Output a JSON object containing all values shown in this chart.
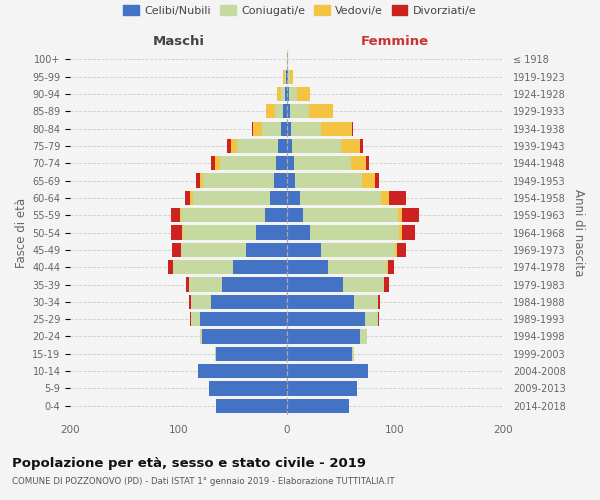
{
  "age_groups": [
    "0-4",
    "5-9",
    "10-14",
    "15-19",
    "20-24",
    "25-29",
    "30-34",
    "35-39",
    "40-44",
    "45-49",
    "50-54",
    "55-59",
    "60-64",
    "65-69",
    "70-74",
    "75-79",
    "80-84",
    "85-89",
    "90-94",
    "95-99",
    "100+"
  ],
  "birth_years": [
    "2014-2018",
    "2009-2013",
    "2004-2008",
    "1999-2003",
    "1994-1998",
    "1989-1993",
    "1984-1988",
    "1979-1983",
    "1974-1978",
    "1969-1973",
    "1964-1968",
    "1959-1963",
    "1954-1958",
    "1949-1953",
    "1944-1948",
    "1939-1943",
    "1934-1938",
    "1929-1933",
    "1924-1928",
    "1919-1923",
    "≤ 1918"
  ],
  "colors": {
    "celibi": "#4472c4",
    "coniugati": "#c5d9a0",
    "vedovi": "#f5c342",
    "divorziati": "#cc2222"
  },
  "maschi": {
    "celibi": [
      65,
      72,
      82,
      65,
      78,
      80,
      70,
      60,
      50,
      38,
      28,
      20,
      15,
      12,
      10,
      8,
      5,
      3,
      2,
      1,
      0
    ],
    "coniugati": [
      0,
      0,
      0,
      1,
      2,
      8,
      18,
      30,
      55,
      60,
      68,
      78,
      72,
      65,
      52,
      38,
      18,
      8,
      3,
      1,
      0
    ],
    "vedovi": [
      0,
      0,
      0,
      0,
      0,
      0,
      0,
      0,
      0,
      0,
      1,
      1,
      2,
      3,
      4,
      5,
      8,
      8,
      4,
      1,
      0
    ],
    "divorziati": [
      0,
      0,
      0,
      0,
      0,
      1,
      2,
      3,
      5,
      8,
      10,
      8,
      5,
      4,
      4,
      4,
      1,
      0,
      0,
      0,
      0
    ]
  },
  "femmine": {
    "celibi": [
      58,
      65,
      75,
      60,
      68,
      72,
      62,
      52,
      38,
      32,
      22,
      15,
      12,
      8,
      7,
      5,
      4,
      3,
      2,
      1,
      0
    ],
    "coniugati": [
      0,
      0,
      0,
      2,
      6,
      12,
      22,
      38,
      55,
      68,
      82,
      88,
      75,
      62,
      52,
      45,
      28,
      18,
      8,
      2,
      0
    ],
    "vedovi": [
      0,
      0,
      0,
      0,
      0,
      0,
      0,
      0,
      1,
      2,
      3,
      4,
      8,
      12,
      14,
      18,
      28,
      22,
      12,
      3,
      1
    ],
    "divorziati": [
      0,
      0,
      0,
      0,
      0,
      1,
      2,
      5,
      5,
      8,
      12,
      15,
      15,
      3,
      3,
      3,
      1,
      0,
      0,
      0,
      0
    ]
  },
  "legend_labels": [
    "Celibi/Nubili",
    "Coniugati/e",
    "Vedovi/e",
    "Divorziati/e"
  ],
  "label_maschi": "Maschi",
  "label_femmine": "Femmine",
  "ylabel_left": "Fasce di età",
  "ylabel_right": "Anni di nascita",
  "title": "Popolazione per età, sesso e stato civile - 2019",
  "subtitle": "COMUNE DI POZZONOVO (PD) - Dati ISTAT 1° gennaio 2019 - Elaborazione TUTTITALIA.IT",
  "xlim": 200,
  "bg_color": "#f4f4f4"
}
